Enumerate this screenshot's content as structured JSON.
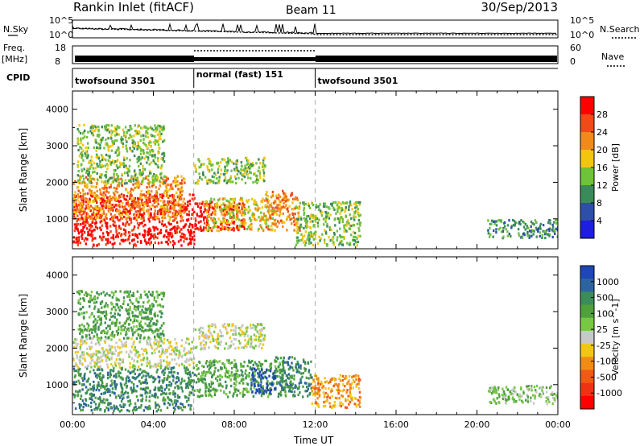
{
  "header": {
    "title": "Rankin Inlet (fitACF)",
    "beam": "Beam 11",
    "date": "30/Sep/2013"
  },
  "top_panels": {
    "nsky_label": "N.Sky",
    "nsearch_label": "N.Search",
    "count_ticks_left": [
      "10^5",
      "10^0"
    ],
    "count_ticks_right": [
      "10^5",
      "10^0"
    ],
    "freq_label_1": "Freq.",
    "freq_label_2": "[MHz]",
    "freq_ticks": [
      "18",
      "8"
    ],
    "nave_label": "Nave",
    "nave_ticks": [
      "60",
      "0"
    ],
    "cpid_label": "CPID",
    "cpid_segments": [
      {
        "label": "twofsound 3501",
        "start_hour": 0,
        "end_hour": 6
      },
      {
        "label": "normal (fast) 151",
        "start_hour": 6,
        "end_hour": 12
      },
      {
        "label": "twofsound 3501",
        "start_hour": 12,
        "end_hour": 24
      }
    ]
  },
  "chart_data": [
    {
      "type": "heatmap",
      "title": "",
      "xlabel": "",
      "ylabel": "Slant Range [km]",
      "xlim": [
        0,
        24
      ],
      "ylim": [
        180,
        4500
      ],
      "yticks": [
        1000,
        2000,
        3000,
        4000
      ],
      "colorbar": {
        "label": "Power [dB]",
        "ticks": [
          "4",
          "8",
          "12",
          "16",
          "20",
          "24",
          "28"
        ],
        "colors": [
          "#1e1ee0",
          "#2d4fa8",
          "#3b8a5a",
          "#6fc23a",
          "#f2c60f",
          "#f08a1a",
          "#ef4a18",
          "#ff0000"
        ]
      },
      "regions": [
        {
          "t0": 0.0,
          "t1": 6.0,
          "r0": 300,
          "r1": 1700,
          "level": 7
        },
        {
          "t0": 0.0,
          "t1": 5.5,
          "r0": 1000,
          "r1": 2200,
          "level": 5
        },
        {
          "t0": 0.2,
          "t1": 4.5,
          "r0": 2000,
          "r1": 3600,
          "level": 3
        },
        {
          "t0": 6.0,
          "t1": 8.5,
          "r0": 700,
          "r1": 1500,
          "level": 7
        },
        {
          "t0": 6.5,
          "t1": 10.0,
          "r0": 700,
          "r1": 1600,
          "level": 4
        },
        {
          "t0": 9.5,
          "t1": 11.2,
          "r0": 700,
          "r1": 1800,
          "level": 5
        },
        {
          "t0": 6.0,
          "t1": 9.5,
          "r0": 2000,
          "r1": 2700,
          "level": 3
        },
        {
          "t0": 11.0,
          "t1": 14.2,
          "r0": 300,
          "r1": 1500,
          "level": 3
        },
        {
          "t0": 20.5,
          "t1": 24.0,
          "r0": 500,
          "r1": 1000,
          "level": 2
        }
      ]
    },
    {
      "type": "heatmap",
      "title": "",
      "xlabel": "Time UT",
      "ylabel": "Slant Range [km]",
      "xlim": [
        0,
        24
      ],
      "ylim": [
        180,
        4500
      ],
      "yticks": [
        1000,
        2000,
        3000,
        4000
      ],
      "xtick_labels": [
        "00:00",
        "04:00",
        "08:00",
        "12:00",
        "16:00",
        "20:00",
        "00:00"
      ],
      "colorbar": {
        "label": "Velocity [m s^-1]",
        "ticks": [
          "1000",
          "500",
          "100",
          "25",
          "-25",
          "-100",
          "-500",
          "-1000"
        ],
        "colors": [
          "#1e46b4",
          "#2d64a0",
          "#3c8c5a",
          "#50a03c",
          "#78c846",
          "#c8c8c8",
          "#f0c814",
          "#f08c14",
          "#f05a14",
          "#f03214",
          "#ff0000"
        ]
      },
      "regions": [
        {
          "t0": 0.0,
          "t1": 6.0,
          "r0": 300,
          "r1": 1500,
          "level": 2
        },
        {
          "t0": 0.0,
          "t1": 6.0,
          "r0": 1500,
          "r1": 2300,
          "level": 5
        },
        {
          "t0": 0.2,
          "t1": 4.5,
          "r0": 2300,
          "r1": 3600,
          "level": 3
        },
        {
          "t0": 6.0,
          "t1": 10.5,
          "r0": 700,
          "r1": 1700,
          "level": 3
        },
        {
          "t0": 8.8,
          "t1": 10.0,
          "r0": 800,
          "r1": 1500,
          "level": 0
        },
        {
          "t0": 10.0,
          "t1": 11.8,
          "r0": 700,
          "r1": 1800,
          "level": 2
        },
        {
          "t0": 11.8,
          "t1": 14.2,
          "r0": 400,
          "r1": 1300,
          "level": 7
        },
        {
          "t0": 6.0,
          "t1": 9.5,
          "r0": 2000,
          "r1": 2700,
          "level": 5
        },
        {
          "t0": 20.5,
          "t1": 24.0,
          "r0": 500,
          "r1": 1000,
          "level": 4
        }
      ]
    }
  ]
}
